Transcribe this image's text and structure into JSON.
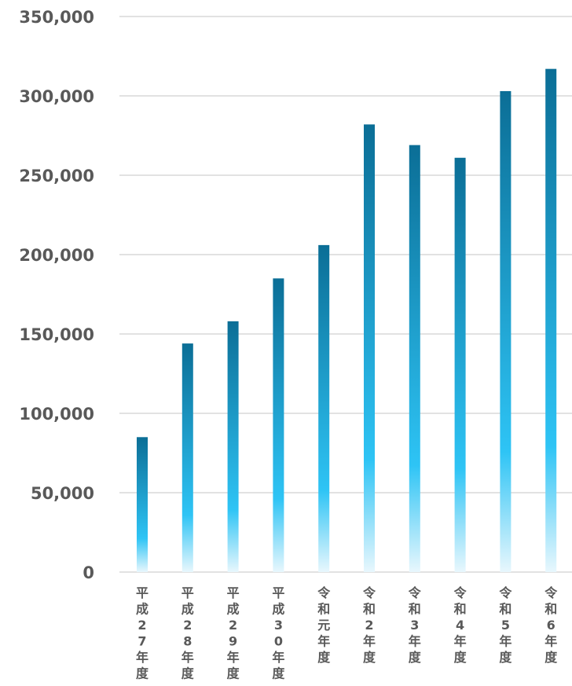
{
  "chart_data": {
    "type": "bar",
    "title": "",
    "xlabel": "",
    "ylabel": "",
    "ylim": [
      0,
      350000
    ],
    "yticks": [
      0,
      50000,
      100000,
      150000,
      200000,
      250000,
      300000,
      350000
    ],
    "ytick_labels": [
      "0",
      "50,000",
      "100,000",
      "150,000",
      "200,000",
      "250,000",
      "300,000",
      "350,000"
    ],
    "grid": true,
    "legend": "none",
    "categories": [
      "平成27年度",
      "平成28年度",
      "平成29年度",
      "平成30年度",
      "令和元年度",
      "令和2年度",
      "令和3年度",
      "令和4年度",
      "令和5年度",
      "令和6年度"
    ],
    "values": [
      85000,
      144000,
      158000,
      185000,
      206000,
      282000,
      269000,
      261000,
      303000,
      317000
    ],
    "colors": {
      "bar_top": "#0b6e96",
      "bar_mid": "#2ec4f5",
      "bar_bottom": "#e8f7fd",
      "grid": "#d9d9d9",
      "text": "#595959"
    }
  }
}
